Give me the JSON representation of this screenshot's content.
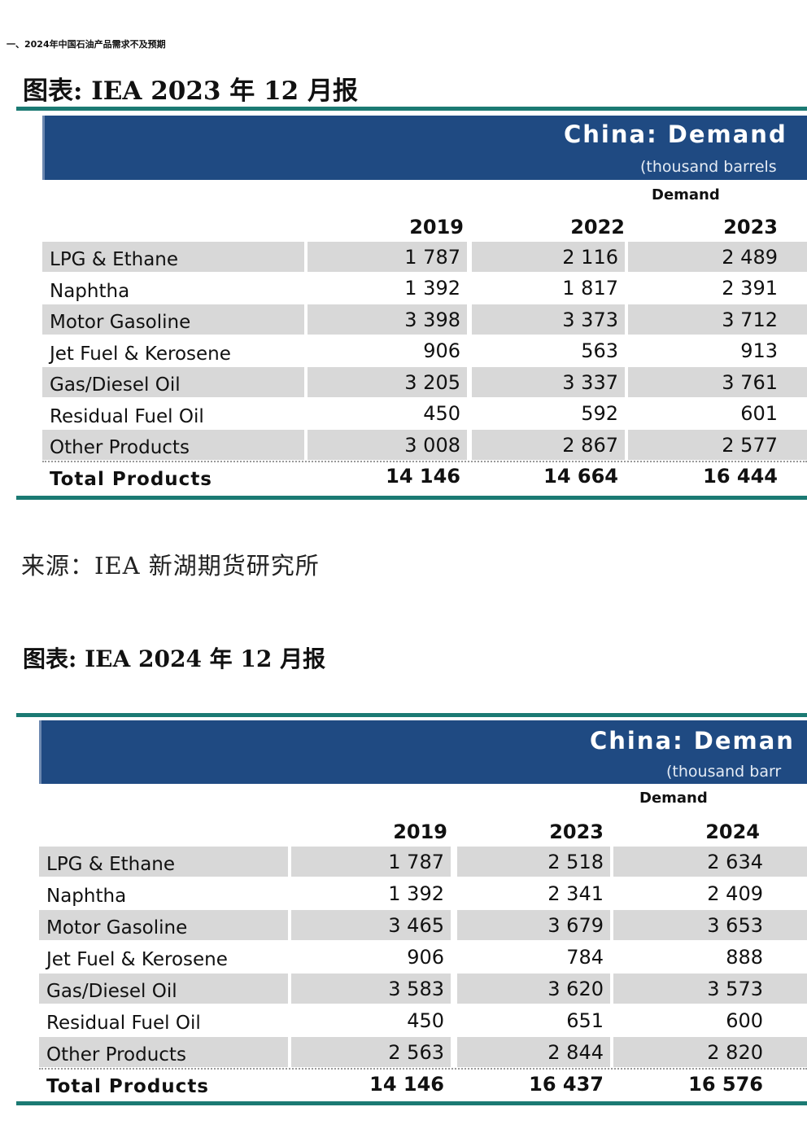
{
  "heading": "一、2024年中国石油产品需求不及预期",
  "figure1": {
    "title": "图表: IEA 2023 年 12 月报",
    "banner_title": "China: Demand",
    "banner_sub": "(thousand barrels",
    "demand_label": "Demand",
    "years": [
      "2019",
      "2022",
      "2023"
    ],
    "rows": [
      {
        "label": "LPG & Ethane",
        "values": [
          "1 787",
          "2 116",
          "2 489"
        ]
      },
      {
        "label": "Naphtha",
        "values": [
          "1 392",
          "1 817",
          "2 391"
        ]
      },
      {
        "label": "Motor Gasoline",
        "values": [
          "3 398",
          "3 373",
          "3 712"
        ]
      },
      {
        "label": "Jet Fuel & Kerosene",
        "values": [
          "906",
          "563",
          "913"
        ]
      },
      {
        "label": "Gas/Diesel Oil",
        "values": [
          "3 205",
          "3 337",
          "3 761"
        ]
      },
      {
        "label": "Residual Fuel Oil",
        "values": [
          "450",
          "592",
          "601"
        ]
      },
      {
        "label": "Other Products",
        "values": [
          "3 008",
          "2 867",
          "2 577"
        ]
      }
    ],
    "total": {
      "label": "Total Products",
      "values": [
        "14 146",
        "14 664",
        "16 444"
      ]
    }
  },
  "source": "来源：IEA 新湖期货研究所",
  "figure2": {
    "title": "图表: IEA 2024 年 12 月报",
    "banner_title": "China: Deman",
    "banner_sub": "(thousand barr",
    "demand_label": "Demand",
    "years": [
      "2019",
      "2023",
      "2024"
    ],
    "rows": [
      {
        "label": "LPG & Ethane",
        "values": [
          "1 787",
          "2 518",
          "2 634"
        ]
      },
      {
        "label": "Naphtha",
        "values": [
          "1 392",
          "2 341",
          "2 409"
        ]
      },
      {
        "label": "Motor Gasoline",
        "values": [
          "3 465",
          "3 679",
          "3 653"
        ]
      },
      {
        "label": "Jet Fuel & Kerosene",
        "values": [
          "906",
          "784",
          "888"
        ]
      },
      {
        "label": "Gas/Diesel Oil",
        "values": [
          "3 583",
          "3 620",
          "3 573"
        ]
      },
      {
        "label": "Residual Fuel Oil",
        "values": [
          "450",
          "651",
          "600"
        ]
      },
      {
        "label": "Other Products",
        "values": [
          "2 563",
          "2 844",
          "2 820"
        ]
      }
    ],
    "total": {
      "label": "Total Products",
      "values": [
        "14 146",
        "16 437",
        "16 576"
      ]
    }
  }
}
